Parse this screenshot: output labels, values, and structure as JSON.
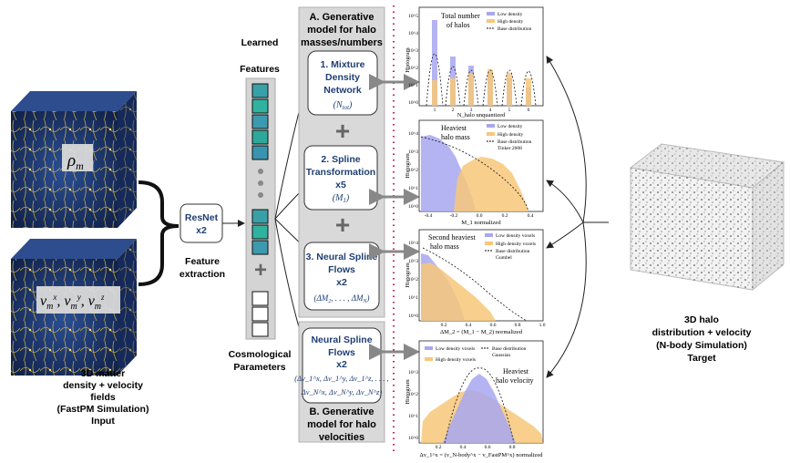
{
  "input": {
    "density_label": "ρ",
    "density_sub": "m",
    "velocity_label": "v",
    "velocity_sub": "m",
    "caption": [
      "3D matter",
      "density + velocity",
      "fields",
      "(FastPM Simulation)",
      "Input"
    ]
  },
  "resnet": {
    "line1": "ResNet",
    "line2": "x2"
  },
  "feature_extraction": [
    "Feature",
    "extraction"
  ],
  "learned_features": [
    "Learned",
    "Features"
  ],
  "cosmo_params": [
    "Cosmological",
    "Parameters"
  ],
  "panel_a": {
    "title": [
      "A. Generative",
      "model for halo",
      "masses/numbers"
    ]
  },
  "panel_b": {
    "title": [
      "B. Generative",
      "model for halo",
      "velocities"
    ]
  },
  "boxes": {
    "b1": {
      "lines": [
        "1. Mixture",
        "Density",
        "Network"
      ],
      "math": "(N_tot)"
    },
    "b2": {
      "lines": [
        "2. Spline",
        "Transformation",
        "x5"
      ],
      "math": "(M_1)"
    },
    "b3": {
      "lines": [
        "3. Neural Spline",
        "Flows",
        "x2"
      ],
      "math": "(ΔM_2, . . . , ΔM_N)"
    },
    "b4": {
      "lines": [
        "Neural Spline",
        "Flows",
        "x2"
      ],
      "math1": "(Δv_1^x, Δv_1^y, Δv_1^z, . . . ,",
      "math2": "Δv_N^x, Δv_N^y, Δv_N^z)"
    }
  },
  "target": {
    "caption": [
      "3D halo",
      "distribution + velocity",
      "(N-body Simulation)",
      "Target"
    ]
  },
  "plots": {
    "p1": {
      "annotation": [
        "Total number",
        "of halos"
      ],
      "legend": [
        "Low density",
        "High density",
        "Base distribution"
      ],
      "xlabel": "N_halo unquantized",
      "ylabel": "Histogram",
      "xticks": [
        "1",
        "2",
        "3",
        "4",
        "5",
        "6"
      ],
      "yticks": [
        "10^0",
        "10^1",
        "10^2",
        "10^3",
        "10^4",
        "10^5"
      ]
    },
    "p2": {
      "annotation": [
        "Heaviest",
        "halo mass"
      ],
      "legend": [
        "Low density",
        "High density",
        "Base distribution",
        "Tinker 2008"
      ],
      "xlabel": "M_1 normalized",
      "ylabel": "Histogram",
      "xticks": [
        "-0.4",
        "-0.2",
        "0.0",
        "0.2",
        "0.4"
      ],
      "yticks": [
        "10^0",
        "10^1",
        "10^2",
        "10^3",
        "10^4"
      ]
    },
    "p3": {
      "annotation": [
        "Second heaviest",
        "halo mass"
      ],
      "legend": [
        "Low density voxels",
        "High density voxels",
        "Base distribution",
        "Gumbel"
      ],
      "xlabel": "ΔM_2 = (M_1 − M_2) normalized",
      "ylabel": "Histogram",
      "xticks": [
        "0.2",
        "0.4",
        "0.6",
        "0.8",
        "1.0"
      ],
      "yticks": [
        "10^0",
        "10^1",
        "10^2",
        "10^3",
        "10^4"
      ]
    },
    "p4": {
      "annotation": [
        "Heaviest",
        "halo velocity"
      ],
      "legend": [
        "Low density voxels",
        "High density voxels",
        "Base distribution",
        "Gaussian"
      ],
      "xlabel": "Δv_1^x = (v_N-body^x − v_FastPM^x) normalized",
      "ylabel": "Histogram",
      "xticks": [
        "0.2",
        "0.4",
        "0.6",
        "0.8"
      ],
      "yticks": [
        "10^0",
        "10^1",
        "10^2",
        "10^3"
      ]
    }
  },
  "colors": {
    "low": "#a7a7f0",
    "high": "#f7c779",
    "panel": "#d9d9d9",
    "accent": "#1f3f73",
    "dotted": "#cc1f5a"
  }
}
